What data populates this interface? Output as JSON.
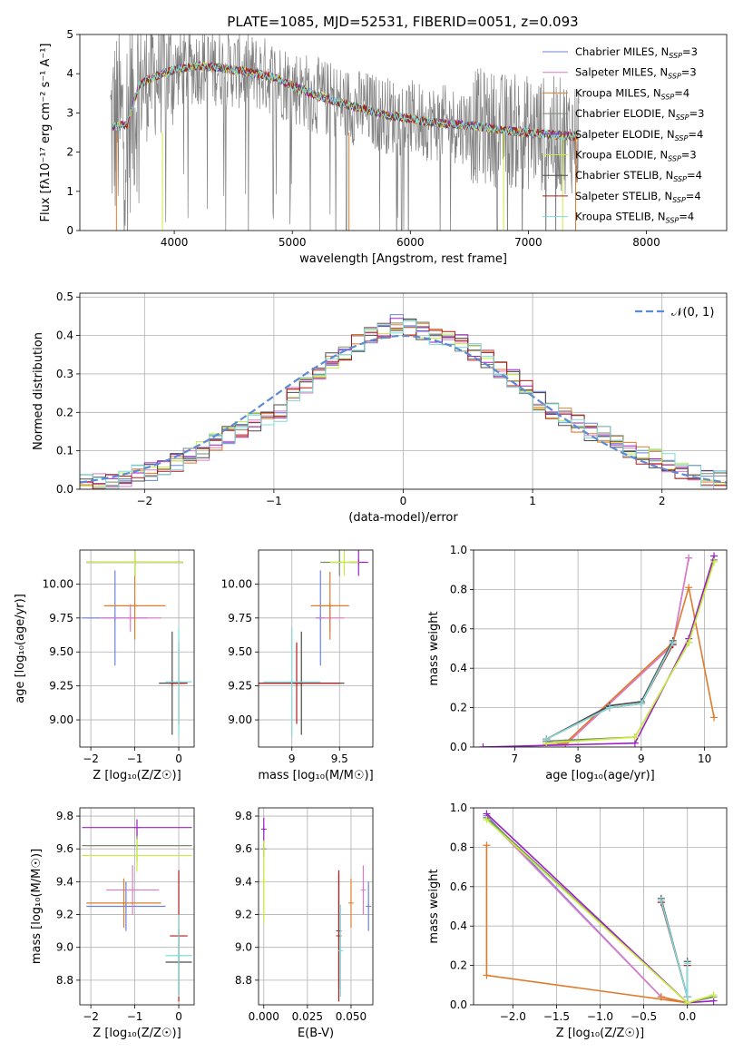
{
  "title": "PLATE=1085, MJD=52531, FIBERID=0051, z=0.093",
  "colors": {
    "Chabrier MILES": "#6a83db",
    "Salpeter MILES": "#e07ac8",
    "Kroupa MILES": "#e07b2b",
    "Chabrier ELODIE": "#7a8a6f",
    "Salpeter ELODIE": "#9b22c3",
    "Kroupa ELODIE": "#c8ee3c",
    "Chabrier STELIB": "#4d4d4d",
    "Salpeter STELIB": "#b01a1a",
    "Kroupa STELIB": "#7fdcdc",
    "data": "#808080",
    "normal": "#5b8bd6"
  },
  "chart_data": [
    {
      "type": "line",
      "name": "spectrum",
      "xlabel": "wavelength [Angstrom, rest frame]",
      "ylabel": "Flux [fλ10⁻¹⁷ erg cm⁻² s⁻¹ A⁻¹]",
      "xlim": [
        3200,
        8680
      ],
      "ylim": [
        0,
        5
      ],
      "xticks": [
        4000,
        5000,
        6000,
        7000,
        8000
      ],
      "yticks": [
        0,
        1,
        2,
        3,
        4,
        5
      ],
      "grid": false,
      "legend_position": "top-right",
      "legend": [
        {
          "label": "Chabrier MILES, N",
          "sub": "SSP",
          "suffix": "=3",
          "color": "#6a83db"
        },
        {
          "label": "Salpeter MILES, N",
          "sub": "SSP",
          "suffix": "=3",
          "color": "#e07ac8"
        },
        {
          "label": "Kroupa MILES, N",
          "sub": "SSP",
          "suffix": "=4",
          "color": "#e07b2b"
        },
        {
          "label": "Chabrier ELODIE, N",
          "sub": "SSP",
          "suffix": "=3",
          "color": "#7a8a6f"
        },
        {
          "label": "Salpeter ELODIE, N",
          "sub": "SSP",
          "suffix": "=4",
          "color": "#9b22c3"
        },
        {
          "label": "Kroupa ELODIE, N",
          "sub": "SSP",
          "suffix": "=3",
          "color": "#c8ee3c"
        },
        {
          "label": "Chabrier STELIB, N",
          "sub": "SSP",
          "suffix": "=4",
          "color": "#4d4d4d"
        },
        {
          "label": "Salpeter STELIB, N",
          "sub": "SSP",
          "suffix": "=4",
          "color": "#b01a1a"
        },
        {
          "label": "Kroupa STELIB, N",
          "sub": "SSP",
          "suffix": "=4",
          "color": "#7fdcdc"
        }
      ],
      "continuum": {
        "x": [
          3500,
          3600,
          3700,
          3800,
          3900,
          4000,
          4100,
          4200,
          4400,
          4600,
          4800,
          5000,
          5200,
          5400,
          5600,
          5800,
          6000,
          6200,
          6400,
          6600,
          6800,
          7000,
          7200,
          7400
        ],
        "y": [
          2.65,
          2.7,
          3.7,
          3.9,
          4.0,
          4.1,
          4.15,
          4.2,
          4.15,
          4.05,
          3.95,
          3.7,
          3.45,
          3.25,
          3.1,
          2.95,
          2.85,
          2.75,
          2.7,
          2.65,
          2.55,
          2.5,
          2.45,
          2.4
        ]
      }
    },
    {
      "type": "bar",
      "name": "residual-histogram",
      "xlabel": "(data-model)/error",
      "ylabel": "Normed distribution",
      "xlim": [
        -2.5,
        2.5
      ],
      "ylim": [
        0,
        0.51
      ],
      "xticks": [
        -2,
        -1,
        0,
        1,
        2
      ],
      "yticks": [
        0.0,
        0.1,
        0.2,
        0.3,
        0.4,
        0.5
      ],
      "grid": true,
      "legend_position": "top-right",
      "legend": "𝒩(0, 1)",
      "bin_edges": [
        -2.5,
        -2.4,
        -2.3,
        -2.2,
        -2.1,
        -2.0,
        -1.9,
        -1.8,
        -1.7,
        -1.6,
        -1.5,
        -1.4,
        -1.3,
        -1.2,
        -1.1,
        -1.0,
        -0.9,
        -0.8,
        -0.7,
        -0.6,
        -0.5,
        -0.4,
        -0.3,
        -0.2,
        -0.1,
        0.0,
        0.1,
        0.2,
        0.3,
        0.4,
        0.5,
        0.6,
        0.7,
        0.8,
        0.9,
        1.0,
        1.1,
        1.2,
        1.3,
        1.4,
        1.5,
        1.6,
        1.7,
        1.8,
        1.9,
        2.0,
        2.1,
        2.2,
        2.3,
        2.4,
        2.5
      ],
      "values": [
        0.015,
        0.02,
        0.02,
        0.03,
        0.04,
        0.045,
        0.06,
        0.07,
        0.09,
        0.1,
        0.12,
        0.14,
        0.16,
        0.175,
        0.18,
        0.2,
        0.24,
        0.27,
        0.3,
        0.33,
        0.36,
        0.38,
        0.4,
        0.41,
        0.43,
        0.42,
        0.41,
        0.4,
        0.39,
        0.38,
        0.36,
        0.34,
        0.31,
        0.29,
        0.26,
        0.23,
        0.2,
        0.19,
        0.17,
        0.15,
        0.14,
        0.12,
        0.1,
        0.09,
        0.08,
        0.07,
        0.05,
        0.04,
        0.03,
        0.025
      ],
      "normal_curve": {
        "mean": 0,
        "sigma": 1
      }
    },
    {
      "type": "scatter",
      "name": "age-vs-Z",
      "xlabel": "Z [log₁₀(Z/Z☉)]",
      "ylabel": "age  [log₁₀(age/yr)]",
      "xlim": [
        -2.25,
        0.35
      ],
      "ylim": [
        8.8,
        10.25
      ],
      "xticks": [
        -2,
        -1,
        0
      ],
      "yticks": [
        9.0,
        9.25,
        9.5,
        9.75,
        10.0
      ],
      "grid": true,
      "points": [
        {
          "model": "Chabrier MILES",
          "x": -1.45,
          "y": 9.75,
          "xerr": 0.75,
          "yerr": 0.35
        },
        {
          "model": "Salpeter MILES",
          "x": -1.1,
          "y": 9.75,
          "xerr": 0.7,
          "yerr": 0.1
        },
        {
          "model": "Kroupa MILES",
          "x": -1.0,
          "y": 9.84,
          "xerr": 0.7,
          "yerr": 0.25
        },
        {
          "model": "Chabrier ELODIE",
          "x": -1.0,
          "y": 10.16,
          "xerr": 1.1,
          "yerr": 0.1
        },
        {
          "model": "Salpeter ELODIE",
          "x": -1.0,
          "y": 10.16,
          "xerr": 1.1,
          "yerr": 0.1
        },
        {
          "model": "Kroupa ELODIE",
          "x": -1.0,
          "y": 10.16,
          "xerr": 1.1,
          "yerr": 0.1
        },
        {
          "model": "Chabrier STELIB",
          "x": -0.15,
          "y": 9.27,
          "xerr": 0.3,
          "yerr": 0.38
        },
        {
          "model": "Salpeter STELIB",
          "x": 0.0,
          "y": 9.27,
          "xerr": 0.2,
          "yerr": 0.3
        },
        {
          "model": "Kroupa STELIB",
          "x": 0.0,
          "y": 9.28,
          "xerr": 0.3,
          "yerr": 0.4
        }
      ]
    },
    {
      "type": "scatter",
      "name": "age-vs-mass",
      "xlabel": "mass [log₁₀(M/M☉)]",
      "ylabel": "",
      "xlim": [
        8.65,
        9.85
      ],
      "ylim": [
        8.8,
        10.25
      ],
      "xticks": [
        9.0,
        9.5
      ],
      "yticks": [
        9.0,
        9.25,
        9.5,
        9.75,
        10.0
      ],
      "grid": true,
      "points": [
        {
          "model": "Chabrier MILES",
          "x": 9.3,
          "y": 9.75,
          "xerr": 0.05,
          "yerr": 0.35
        },
        {
          "model": "Salpeter MILES",
          "x": 9.4,
          "y": 9.75,
          "xerr": 0.15,
          "yerr": 0.1
        },
        {
          "model": "Kroupa MILES",
          "x": 9.4,
          "y": 9.84,
          "xerr": 0.2,
          "yerr": 0.25
        },
        {
          "model": "Chabrier ELODIE",
          "x": 9.5,
          "y": 10.16,
          "xerr": 0.2,
          "yerr": 0.1
        },
        {
          "model": "Salpeter ELODIE",
          "x": 9.7,
          "y": 10.16,
          "xerr": 0.1,
          "yerr": 0.1
        },
        {
          "model": "Kroupa ELODIE",
          "x": 9.55,
          "y": 10.16,
          "xerr": 0.15,
          "yerr": 0.1
        },
        {
          "model": "Chabrier STELIB",
          "x": 9.1,
          "y": 9.27,
          "xerr": 0.45,
          "yerr": 0.38
        },
        {
          "model": "Salpeter STELIB",
          "x": 9.05,
          "y": 9.27,
          "xerr": 0.45,
          "yerr": 0.3
        },
        {
          "model": "Kroupa STELIB",
          "x": 9.0,
          "y": 9.28,
          "xerr": 0.3,
          "yerr": 0.4
        }
      ]
    },
    {
      "type": "line",
      "name": "mass-weight-vs-age",
      "xlabel": "age  [log₁₀(age/yr)]",
      "ylabel": "mass weight",
      "xlim": [
        6.35,
        10.35
      ],
      "ylim": [
        0,
        1.0
      ],
      "xticks": [
        7,
        8,
        9,
        10
      ],
      "yticks": [
        0.0,
        0.2,
        0.4,
        0.6,
        0.8,
        1.0
      ],
      "grid": true,
      "series": [
        {
          "model": "Chabrier MILES",
          "x": [
            7.5,
            7.8,
            9.5,
            9.75
          ],
          "y": [
            0.03,
            0.01,
            0.52,
            0.96
          ]
        },
        {
          "model": "Salpeter MILES",
          "x": [
            7.5,
            7.8,
            9.5,
            9.75
          ],
          "y": [
            0.01,
            0.01,
            0.52,
            0.96
          ]
        },
        {
          "model": "Kroupa MILES",
          "x": [
            7.5,
            7.8,
            9.5,
            9.75,
            10.15
          ],
          "y": [
            0.02,
            0.02,
            0.53,
            0.81,
            0.15
          ]
        },
        {
          "model": "Chabrier ELODIE",
          "x": [
            7.5,
            8.9,
            9.75,
            10.15
          ],
          "y": [
            0.03,
            0.05,
            0.53,
            0.95
          ]
        },
        {
          "model": "Salpeter ELODIE",
          "x": [
            6.5,
            8.9,
            9.75,
            10.15
          ],
          "y": [
            0.0,
            0.02,
            0.55,
            0.97
          ]
        },
        {
          "model": "Kroupa ELODIE",
          "x": [
            7.5,
            8.9,
            9.75,
            10.15
          ],
          "y": [
            0.02,
            0.05,
            0.53,
            0.94
          ]
        },
        {
          "model": "Chabrier STELIB",
          "x": [
            7.5,
            8.5,
            9.0,
            9.5
          ],
          "y": [
            0.04,
            0.21,
            0.23,
            0.54
          ]
        },
        {
          "model": "Salpeter STELIB",
          "x": [
            7.5,
            8.5,
            9.0,
            9.5
          ],
          "y": [
            0.04,
            0.2,
            0.22,
            0.52
          ]
        },
        {
          "model": "Kroupa STELIB",
          "x": [
            7.5,
            8.5,
            9.0,
            9.5
          ],
          "y": [
            0.04,
            0.2,
            0.22,
            0.53
          ]
        }
      ]
    },
    {
      "type": "scatter",
      "name": "mass-vs-Z",
      "xlabel": "Z [log₁₀(Z/Z☉)]",
      "ylabel": "mass [log₁₀(M/M☉)]",
      "xlim": [
        -2.25,
        0.35
      ],
      "ylim": [
        8.65,
        9.85
      ],
      "xticks": [
        -2,
        -1,
        0
      ],
      "yticks": [
        8.8,
        9.0,
        9.2,
        9.4,
        9.6,
        9.8
      ],
      "grid": true,
      "points": [
        {
          "model": "Chabrier MILES",
          "x": -1.2,
          "y": 9.25,
          "xerr": 0.9,
          "yerr": 0.15
        },
        {
          "model": "Salpeter MILES",
          "x": -1.05,
          "y": 9.35,
          "xerr": 0.6,
          "yerr": 0.15
        },
        {
          "model": "Kroupa MILES",
          "x": -1.25,
          "y": 9.27,
          "xerr": 0.85,
          "yerr": 0.15
        },
        {
          "model": "Chabrier ELODIE",
          "x": -0.95,
          "y": 9.62,
          "xerr": 1.25,
          "yerr": 0.1
        },
        {
          "model": "Salpeter ELODIE",
          "x": -0.95,
          "y": 9.73,
          "xerr": 1.25,
          "yerr": 0.05
        },
        {
          "model": "Kroupa ELODIE",
          "x": -0.95,
          "y": 9.56,
          "xerr": 1.25,
          "yerr": 0.1
        },
        {
          "model": "Chabrier STELIB",
          "x": 0.0,
          "y": 8.91,
          "xerr": 0.3,
          "yerr": 0.2
        },
        {
          "model": "Salpeter STELIB",
          "x": 0.0,
          "y": 9.07,
          "xerr": 0.2,
          "yerr": 0.4
        },
        {
          "model": "Kroupa STELIB",
          "x": 0.0,
          "y": 8.95,
          "xerr": 0.3,
          "yerr": 0.25
        }
      ]
    },
    {
      "type": "scatter",
      "name": "mass-vs-EBV",
      "xlabel": "E(B-V)",
      "ylabel": "",
      "xlim": [
        -0.003,
        0.0625
      ],
      "ylim": [
        8.65,
        9.85
      ],
      "xticks": [
        0.0,
        0.025,
        0.05
      ],
      "xticklabels": [
        "0.000",
        "0.025",
        "0.050"
      ],
      "yticks": [
        8.8,
        9.0,
        9.2,
        9.4,
        9.6,
        9.8
      ],
      "grid": true,
      "points": [
        {
          "model": "Chabrier MILES",
          "x": 0.06,
          "y": 9.25,
          "xerr": 0,
          "yerr": 0.15
        },
        {
          "model": "Salpeter MILES",
          "x": 0.057,
          "y": 9.35,
          "xerr": 0,
          "yerr": 0.15
        },
        {
          "model": "Kroupa MILES",
          "x": 0.05,
          "y": 9.27,
          "xerr": 0,
          "yerr": 0.15
        },
        {
          "model": "Chabrier ELODIE",
          "x": 0.0,
          "y": 9.6,
          "xerr": 0,
          "yerr": 0.05
        },
        {
          "model": "Salpeter ELODIE",
          "x": 0.0,
          "y": 9.72,
          "xerr": 0,
          "yerr": 0.07
        },
        {
          "model": "Kroupa ELODIE",
          "x": 0.0,
          "y": 9.4,
          "xerr": 0,
          "yerr": 0.25
        },
        {
          "model": "Chabrier STELIB",
          "x": 0.043,
          "y": 9.1,
          "xerr": 0,
          "yerr": 0.35
        },
        {
          "model": "Salpeter STELIB",
          "x": 0.043,
          "y": 9.07,
          "xerr": 0,
          "yerr": 0.4
        },
        {
          "model": "Kroupa STELIB",
          "x": 0.044,
          "y": 8.98,
          "xerr": 0,
          "yerr": 0.28
        }
      ]
    },
    {
      "type": "line",
      "name": "mass-weight-vs-Z",
      "xlabel": "Z [log₁₀(Z/Z☉)]",
      "ylabel": "mass weight",
      "xlim": [
        -2.45,
        0.45
      ],
      "ylim": [
        0,
        1.0
      ],
      "xticks": [
        -2.0,
        -1.5,
        -1.0,
        -0.5,
        0.0
      ],
      "xticklabels": [
        "−2.0",
        "−1.5",
        "−1.0",
        "−0.5",
        "0.0"
      ],
      "yticks": [
        0.0,
        0.2,
        0.4,
        0.6,
        0.8,
        1.0
      ],
      "grid": true,
      "series": [
        {
          "model": "Chabrier MILES",
          "x": [
            -2.3,
            -0.3,
            0.0
          ],
          "y": [
            0.96,
            0.04,
            0.01
          ]
        },
        {
          "model": "Salpeter MILES",
          "x": [
            -2.3,
            -0.3,
            0.0
          ],
          "y": [
            0.95,
            0.04,
            0.01
          ]
        },
        {
          "model": "Kroupa MILES",
          "x": [
            -2.3,
            -2.3,
            0.0,
            -0.3
          ],
          "y": [
            0.81,
            0.15,
            0.01,
            0.04
          ]
        },
        {
          "model": "Chabrier ELODIE",
          "x": [
            -2.3,
            0.0,
            0.3
          ],
          "y": [
            0.95,
            0.01,
            0.04
          ]
        },
        {
          "model": "Salpeter ELODIE",
          "x": [
            -2.3,
            0.0,
            0.3
          ],
          "y": [
            0.97,
            0.01,
            0.02
          ]
        },
        {
          "model": "Kroupa ELODIE",
          "x": [
            -2.3,
            0.0,
            0.3
          ],
          "y": [
            0.94,
            0.01,
            0.05
          ]
        },
        {
          "model": "Chabrier STELIB",
          "x": [
            -0.3,
            0.0,
            0.0
          ],
          "y": [
            0.54,
            0.04,
            0.22
          ]
        },
        {
          "model": "Salpeter STELIB",
          "x": [
            -0.3,
            0.0,
            0.0
          ],
          "y": [
            0.52,
            0.04,
            0.2
          ]
        },
        {
          "model": "Kroupa STELIB",
          "x": [
            -0.3,
            0.0,
            0.0
          ],
          "y": [
            0.53,
            0.04,
            0.21
          ]
        }
      ]
    }
  ]
}
